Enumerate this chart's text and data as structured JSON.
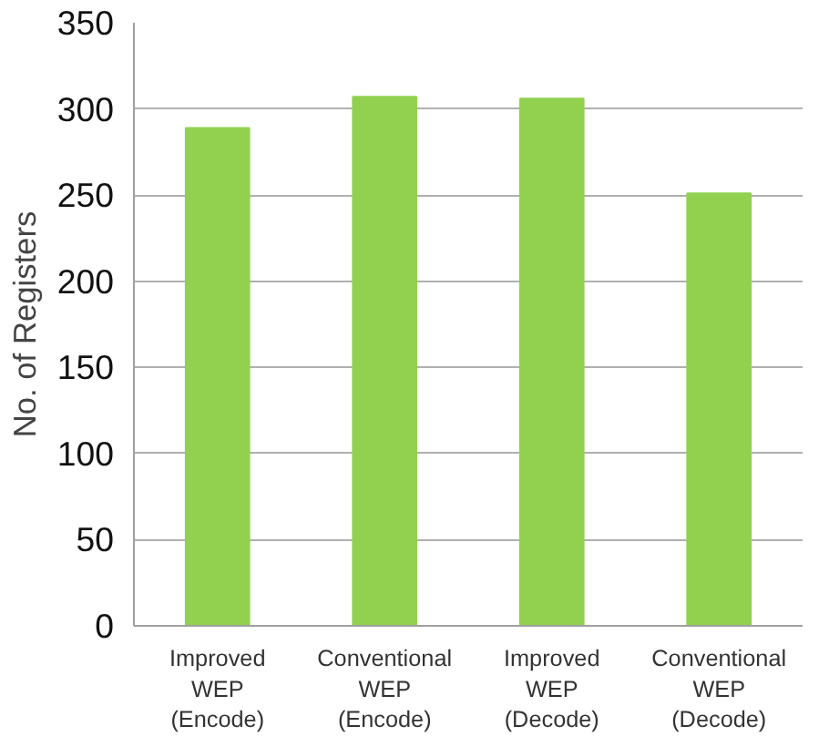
{
  "chart_data": {
    "type": "bar",
    "ylabel": "No. of Registers",
    "categories": [
      "Improved WEP (Encode)",
      "Conventional WEP (Encode)",
      "Improved WEP (Decode)",
      "Conventional WEP (Decode)"
    ],
    "values": [
      289,
      307,
      306,
      251
    ],
    "color": "#92d050",
    "ylim": [
      0,
      350
    ],
    "yticks": [
      0,
      50,
      100,
      150,
      200,
      250,
      300,
      350
    ],
    "grid": "y"
  }
}
